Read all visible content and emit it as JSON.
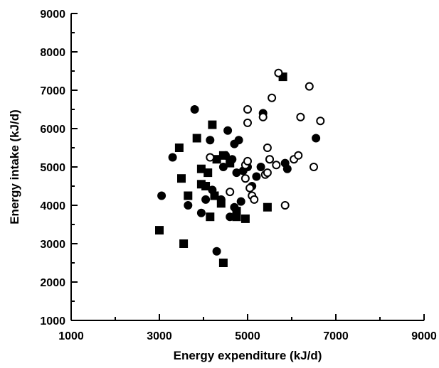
{
  "chart_data": {
    "type": "scatter",
    "xlabel": "Energy expenditure (kJ/d)",
    "ylabel": "Energy intake (kJ/d)",
    "xlim": [
      1000,
      9000
    ],
    "ylim": [
      1000,
      9000
    ],
    "x_ticks": [
      1000,
      3000,
      5000,
      7000,
      9000
    ],
    "y_ticks": [
      1000,
      2000,
      3000,
      4000,
      5000,
      6000,
      7000,
      8000,
      9000
    ],
    "x_tick_labels": [
      "1000",
      "3000",
      "5000",
      "7000",
      "9000"
    ],
    "y_tick_labels": [
      "1000",
      "2000",
      "3000",
      "4000",
      "5000",
      "6000",
      "7000",
      "8000",
      "9000"
    ],
    "grid": false,
    "series": [
      {
        "marker": "filled-circle",
        "color": "#000000",
        "points": [
          [
            3050,
            4250
          ],
          [
            3300,
            5250
          ],
          [
            3650,
            4000
          ],
          [
            3800,
            6500
          ],
          [
            3950,
            3800
          ],
          [
            4050,
            4150
          ],
          [
            4150,
            5700
          ],
          [
            4200,
            4400
          ],
          [
            4300,
            2800
          ],
          [
            4400,
            4150
          ],
          [
            4450,
            5000
          ],
          [
            4500,
            5300
          ],
          [
            4550,
            5950
          ],
          [
            4600,
            3700
          ],
          [
            4650,
            5200
          ],
          [
            4700,
            5600
          ],
          [
            4750,
            4850
          ],
          [
            4800,
            5700
          ],
          [
            4850,
            4100
          ],
          [
            4900,
            4900
          ],
          [
            5000,
            5000
          ],
          [
            5100,
            4500
          ],
          [
            5200,
            4750
          ],
          [
            5300,
            5000
          ],
          [
            5350,
            6400
          ],
          [
            5500,
            5200
          ],
          [
            5850,
            5100
          ],
          [
            5900,
            4950
          ],
          [
            6550,
            5750
          ],
          [
            4700,
            3950
          ]
        ]
      },
      {
        "marker": "filled-square",
        "color": "#000000",
        "points": [
          [
            3000,
            3350
          ],
          [
            3450,
            5500
          ],
          [
            3500,
            4700
          ],
          [
            3550,
            3000
          ],
          [
            3650,
            4250
          ],
          [
            3850,
            5750
          ],
          [
            3950,
            4550
          ],
          [
            3950,
            4950
          ],
          [
            4050,
            4500
          ],
          [
            4100,
            4850
          ],
          [
            4150,
            3700
          ],
          [
            4200,
            6100
          ],
          [
            4250,
            4250
          ],
          [
            4300,
            5200
          ],
          [
            4400,
            4050
          ],
          [
            4450,
            5300
          ],
          [
            4450,
            2500
          ],
          [
            4600,
            5100
          ],
          [
            4750,
            3700
          ],
          [
            4750,
            3850
          ],
          [
            4950,
            3650
          ],
          [
            5450,
            3950
          ],
          [
            5800,
            7350
          ]
        ]
      },
      {
        "marker": "open-circle",
        "color": "#000000",
        "points": [
          [
            4150,
            5250
          ],
          [
            4600,
            4350
          ],
          [
            4950,
            4700
          ],
          [
            4950,
            5050
          ],
          [
            5000,
            5150
          ],
          [
            5000,
            6500
          ],
          [
            5000,
            6150
          ],
          [
            5050,
            4450
          ],
          [
            5100,
            4250
          ],
          [
            5150,
            4150
          ],
          [
            5350,
            6300
          ],
          [
            5400,
            4800
          ],
          [
            5450,
            5500
          ],
          [
            5500,
            5200
          ],
          [
            5550,
            6800
          ],
          [
            5650,
            5050
          ],
          [
            5700,
            7450
          ],
          [
            5850,
            4000
          ],
          [
            6050,
            5200
          ],
          [
            6150,
            5300
          ],
          [
            6200,
            6300
          ],
          [
            6400,
            7100
          ],
          [
            6500,
            5000
          ],
          [
            6650,
            6200
          ],
          [
            5450,
            4850
          ]
        ]
      }
    ]
  }
}
